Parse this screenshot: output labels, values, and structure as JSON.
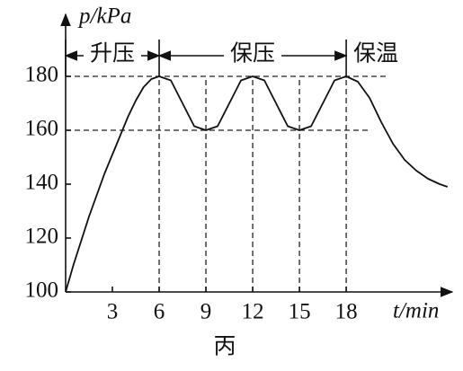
{
  "chart_data": {
    "type": "line",
    "x_label": "t/min",
    "y_label": "p/kPa",
    "caption": "丙",
    "x": [
      0,
      0.5,
      1,
      1.5,
      2,
      2.5,
      3,
      3.5,
      4,
      4.5,
      5,
      5.5,
      6,
      6.75,
      7.5,
      8.25,
      9,
      9.75,
      10.5,
      11.25,
      12,
      12.75,
      13.5,
      14.25,
      15,
      15.75,
      16.5,
      17.25,
      18,
      18.75,
      19.5,
      20.25,
      21,
      21.75,
      22.5,
      23.25,
      24,
      24.5
    ],
    "series": [
      {
        "color": "#111111",
        "values": [
          100,
          110,
          119,
          128,
          136,
          144,
          151,
          158,
          165,
          171,
          176,
          179,
          180,
          178.5,
          170,
          161.5,
          160,
          161.5,
          170,
          178.5,
          180,
          178.5,
          170,
          161.5,
          160,
          161.5,
          170,
          178.5,
          180,
          178,
          172,
          163,
          155,
          149,
          145,
          142,
          140,
          139
        ]
      }
    ],
    "xlim": [
      0,
      24.8
    ],
    "ylim": [
      100,
      203
    ],
    "xticks": [
      3,
      6,
      9,
      12,
      15,
      18
    ],
    "yticks": [
      100,
      120,
      140,
      160,
      180
    ],
    "dashed_y": [
      160,
      180
    ],
    "dashed_x": [
      6,
      9,
      12,
      15,
      18
    ],
    "phases": [
      {
        "label": "升压",
        "from": 0,
        "to": 6
      },
      {
        "label": "保压",
        "from": 6,
        "to": 18
      },
      {
        "label": "保温",
        "from": 18
      }
    ]
  }
}
